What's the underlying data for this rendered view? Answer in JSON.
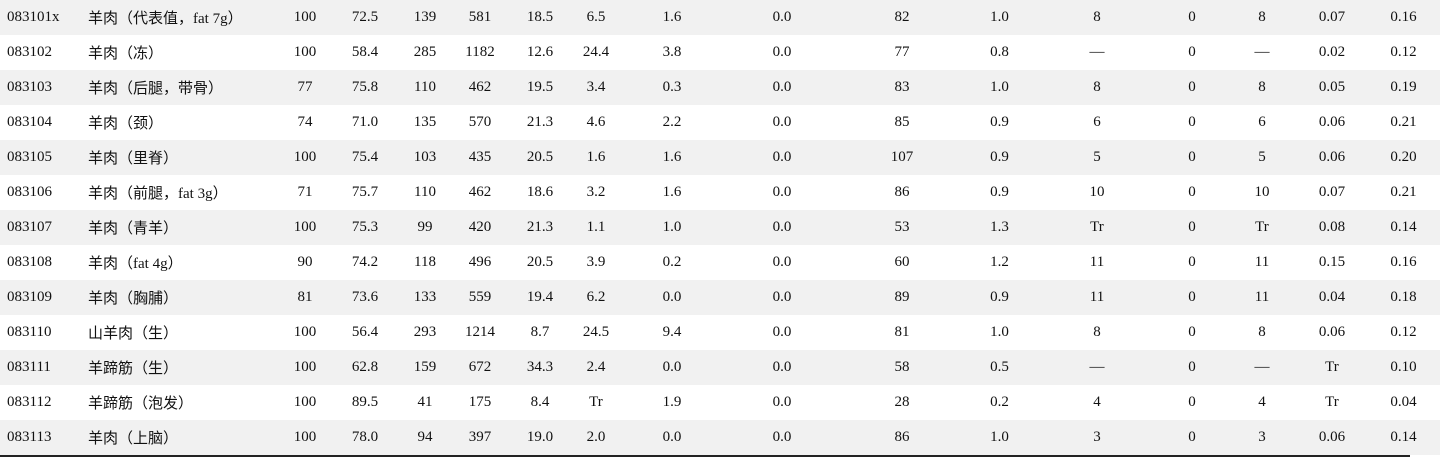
{
  "table": {
    "rows": [
      [
        "083101x",
        "羊肉（代表值，fat 7g）",
        "100",
        "72.5",
        "139",
        "581",
        "18.5",
        "6.5",
        "1.6",
        "0.0",
        "82",
        "1.0",
        "8",
        "0",
        "8",
        "0.07",
        "0.16"
      ],
      [
        "083102",
        "羊肉（冻）",
        "100",
        "58.4",
        "285",
        "1182",
        "12.6",
        "24.4",
        "3.8",
        "0.0",
        "77",
        "0.8",
        "—",
        "0",
        "—",
        "0.02",
        "0.12"
      ],
      [
        "083103",
        "羊肉（后腿，带骨）",
        "77",
        "75.8",
        "110",
        "462",
        "19.5",
        "3.4",
        "0.3",
        "0.0",
        "83",
        "1.0",
        "8",
        "0",
        "8",
        "0.05",
        "0.19"
      ],
      [
        "083104",
        "羊肉（颈）",
        "74",
        "71.0",
        "135",
        "570",
        "21.3",
        "4.6",
        "2.2",
        "0.0",
        "85",
        "0.9",
        "6",
        "0",
        "6",
        "0.06",
        "0.21"
      ],
      [
        "083105",
        "羊肉（里脊）",
        "100",
        "75.4",
        "103",
        "435",
        "20.5",
        "1.6",
        "1.6",
        "0.0",
        "107",
        "0.9",
        "5",
        "0",
        "5",
        "0.06",
        "0.20"
      ],
      [
        "083106",
        "羊肉（前腿，fat 3g）",
        "71",
        "75.7",
        "110",
        "462",
        "18.6",
        "3.2",
        "1.6",
        "0.0",
        "86",
        "0.9",
        "10",
        "0",
        "10",
        "0.07",
        "0.21"
      ],
      [
        "083107",
        "羊肉（青羊）",
        "100",
        "75.3",
        "99",
        "420",
        "21.3",
        "1.1",
        "1.0",
        "0.0",
        "53",
        "1.3",
        "Tr",
        "0",
        "Tr",
        "0.08",
        "0.14"
      ],
      [
        "083108",
        "羊肉（fat 4g）",
        "90",
        "74.2",
        "118",
        "496",
        "20.5",
        "3.9",
        "0.2",
        "0.0",
        "60",
        "1.2",
        "11",
        "0",
        "11",
        "0.15",
        "0.16"
      ],
      [
        "083109",
        "羊肉（胸脯）",
        "81",
        "73.6",
        "133",
        "559",
        "19.4",
        "6.2",
        "0.0",
        "0.0",
        "89",
        "0.9",
        "11",
        "0",
        "11",
        "0.04",
        "0.18"
      ],
      [
        "083110",
        "山羊肉（生）",
        "100",
        "56.4",
        "293",
        "1214",
        "8.7",
        "24.5",
        "9.4",
        "0.0",
        "81",
        "1.0",
        "8",
        "0",
        "8",
        "0.06",
        "0.12"
      ],
      [
        "083111",
        "羊蹄筋（生）",
        "100",
        "62.8",
        "159",
        "672",
        "34.3",
        "2.4",
        "0.0",
        "0.0",
        "58",
        "0.5",
        "—",
        "0",
        "—",
        "Tr",
        "0.10"
      ],
      [
        "083112",
        "羊蹄筋（泡发）",
        "100",
        "89.5",
        "41",
        "175",
        "8.4",
        "Tr",
        "1.9",
        "0.0",
        "28",
        "0.2",
        "4",
        "0",
        "4",
        "Tr",
        "0.04"
      ],
      [
        "083113",
        "羊肉（上脑）",
        "100",
        "78.0",
        "94",
        "397",
        "19.0",
        "2.0",
        "0.0",
        "0.0",
        "86",
        "1.0",
        "3",
        "0",
        "3",
        "0.06",
        "0.14"
      ]
    ]
  }
}
